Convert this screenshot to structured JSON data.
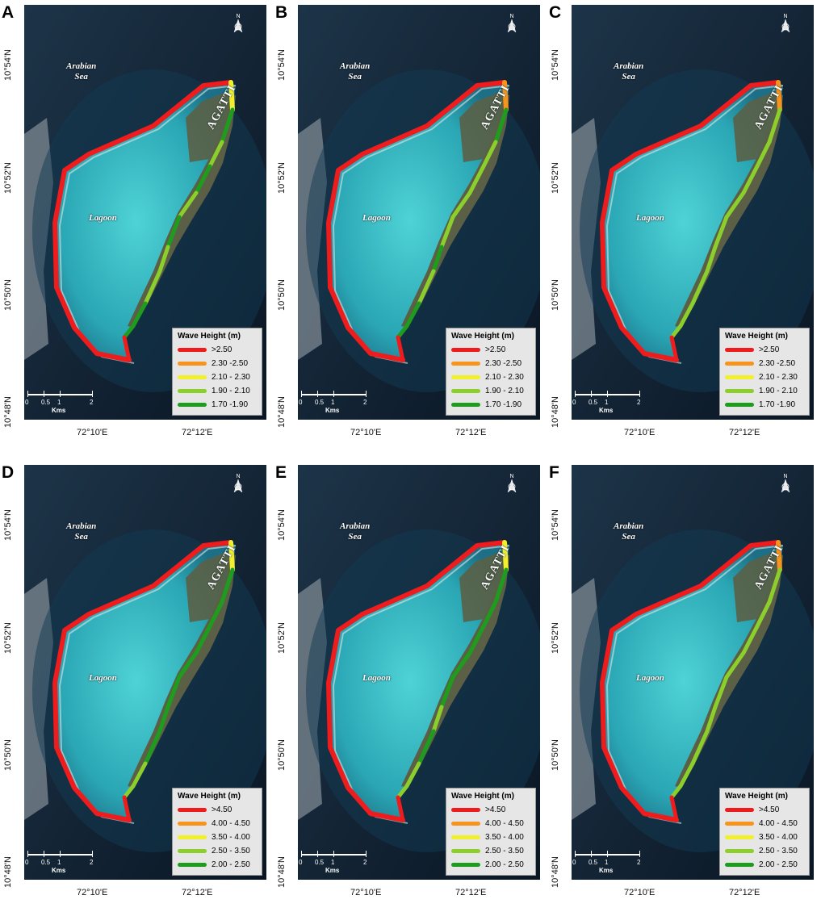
{
  "lon_labels": [
    "72°10'E",
    "72°12'E"
  ],
  "lat_labels": [
    "10°54'N",
    "10°52'N",
    "10°50'N",
    "10°48'N"
  ],
  "map_text": {
    "sea_line1": "Arabian",
    "sea_line2": "Sea",
    "lagoon": "Lagoon",
    "island": "AGATTI",
    "north_letter": "N"
  },
  "scale": {
    "ticks": [
      "0",
      "0.5",
      "1",
      "2"
    ],
    "unit": "Kms"
  },
  "legend_title": "Wave Height (m)",
  "colors": {
    "red": "#ee1c1c",
    "orange": "#f7941d",
    "yellow": "#f2ef2c",
    "lightgreen": "#8ccf2d",
    "green": "#1e9c1e"
  },
  "legend_sets": {
    "set1": [
      {
        "label": ">2.50",
        "color": "#ee1c1c"
      },
      {
        "label": "2.30 -2.50",
        "color": "#f7941d"
      },
      {
        "label": "2.10 - 2.30",
        "color": "#f2ef2c"
      },
      {
        "label": "1.90 - 2.10",
        "color": "#8ccf2d"
      },
      {
        "label": "1.70 -1.90",
        "color": "#1e9c1e"
      }
    ],
    "set2": [
      {
        "label": ">4.50",
        "color": "#ee1c1c"
      },
      {
        "label": "4.00 - 4.50",
        "color": "#f7941d"
      },
      {
        "label": "3.50 - 4.00",
        "color": "#f2ef2c"
      },
      {
        "label": "2.50 - 3.50",
        "color": "#8ccf2d"
      },
      {
        "label": "2.00 - 2.50",
        "color": "#1e9c1e"
      }
    ]
  },
  "panels": [
    {
      "letter": "A",
      "legend_set": "set1",
      "tip_color": "yellow",
      "east_segments": [
        "green",
        "lightgreen",
        "green",
        "lightgreen",
        "green",
        "lightgreen",
        "lightgreen",
        "green"
      ]
    },
    {
      "letter": "B",
      "legend_set": "set1",
      "tip_color": "orange",
      "east_segments": [
        "green",
        "lightgreen",
        "lightgreen",
        "lightgreen",
        "lightgreen",
        "green",
        "lightgreen",
        "green"
      ]
    },
    {
      "letter": "C",
      "legend_set": "set1",
      "tip_color": "orange",
      "east_segments": [
        "lightgreen",
        "lightgreen",
        "lightgreen",
        "lightgreen",
        "lightgreen",
        "lightgreen",
        "lightgreen",
        "lightgreen"
      ]
    },
    {
      "letter": "D",
      "legend_set": "set2",
      "tip_color": "yellow",
      "east_segments": [
        "green",
        "green",
        "green",
        "green",
        "green",
        "green",
        "green",
        "lightgreen"
      ]
    },
    {
      "letter": "E",
      "legend_set": "set2",
      "tip_color": "yellow",
      "east_segments": [
        "green",
        "green",
        "green",
        "green",
        "green",
        "lightgreen",
        "green",
        "lightgreen"
      ]
    },
    {
      "letter": "F",
      "legend_set": "set2",
      "tip_color": "orange",
      "east_segments": [
        "lightgreen",
        "lightgreen",
        "lightgreen",
        "lightgreen",
        "lightgreen",
        "lightgreen",
        "lightgreen",
        "lightgreen"
      ]
    }
  ]
}
